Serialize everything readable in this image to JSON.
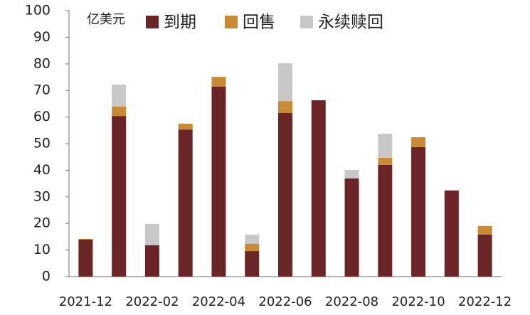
{
  "chart_data": {
    "type": "stacked-bar",
    "unit_label": "亿美元",
    "categories": [
      "2021-12",
      null,
      "2022-02",
      null,
      "2022-04",
      null,
      "2022-06",
      null,
      "2022-08",
      null,
      "2022-10",
      null,
      "2022-12"
    ],
    "series": [
      {
        "name": "到期",
        "color": "#6b2527",
        "values": [
          13.9,
          60.4,
          11.8,
          55.3,
          71.4,
          9.6,
          61.5,
          66.3,
          36.9,
          42.0,
          48.7,
          32.4,
          15.8
        ]
      },
      {
        "name": "回售",
        "color": "#c98a35",
        "values": [
          0.3,
          3.5,
          0,
          2.2,
          3.7,
          2.7,
          4.5,
          0,
          0,
          2.7,
          3.7,
          0,
          3.2
        ]
      },
      {
        "name": "永续赎回",
        "color": "#c8c8c8",
        "values": [
          0,
          8.3,
          8.0,
          0,
          0,
          3.5,
          14.2,
          0,
          3.2,
          9.0,
          0,
          0,
          0
        ]
      }
    ],
    "ylim": [
      0,
      100
    ],
    "yticks": [
      0,
      10,
      20,
      30,
      40,
      50,
      60,
      70,
      80,
      90,
      100
    ]
  }
}
